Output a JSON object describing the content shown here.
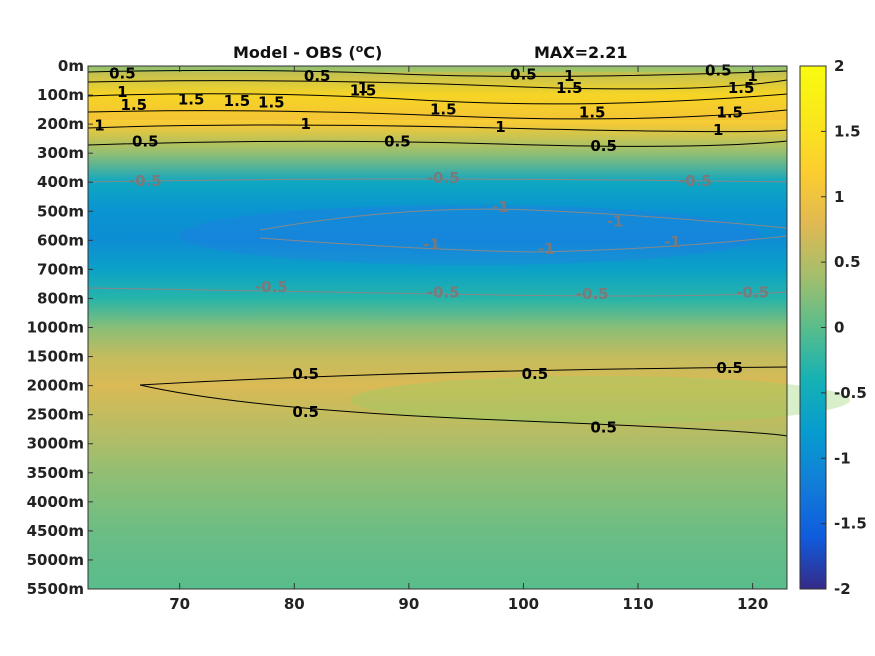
{
  "chart_data": {
    "type": "heatmap",
    "title": "Model - OBS (",
    "title_degree_mark": "o",
    "title_unit_suffix": "C)",
    "annotation": "MAX=2.21",
    "xlim": [
      62,
      123
    ],
    "x_ticks": [
      70,
      80,
      90,
      100,
      110,
      120
    ],
    "x_tick_labels": [
      "70",
      "80",
      "90",
      "100",
      "110",
      "120"
    ],
    "y_levels": [
      "0m",
      "100m",
      "200m",
      "300m",
      "400m",
      "500m",
      "600m",
      "700m",
      "800m",
      "1000m",
      "1500m",
      "2000m",
      "2500m",
      "3000m",
      "3500m",
      "4000m",
      "4500m",
      "5000m",
      "5500m"
    ],
    "colorbar": {
      "range": [
        -2,
        2
      ],
      "ticks": [
        2,
        1.5,
        1,
        0.5,
        0,
        -0.5,
        -1,
        -1.5,
        -2
      ],
      "tick_labels": [
        "2",
        "1.5",
        "1",
        "0.5",
        "0",
        "-0.5",
        "-1",
        "-1.5",
        "-2"
      ]
    },
    "values_by_level": [
      0.3,
      1.6,
      1.1,
      0.3,
      -0.6,
      -0.9,
      -1.0,
      -0.7,
      -0.3,
      0.25,
      0.6,
      0.75,
      0.6,
      0.45,
      0.3,
      0.2,
      0.1,
      0.05,
      0.0
    ],
    "contour_labels": [
      {
        "text": "0.5",
        "x": 65,
        "lev": 0.25,
        "color": "#000000"
      },
      {
        "text": "0.5",
        "x": 82,
        "lev": 0.35,
        "color": "#000000"
      },
      {
        "text": "0.5",
        "x": 100,
        "lev": 0.3,
        "color": "#000000"
      },
      {
        "text": "0.5",
        "x": 117,
        "lev": 0.15,
        "color": "#000000"
      },
      {
        "text": "1",
        "x": 65,
        "lev": 0.9,
        "color": "#000000"
      },
      {
        "text": "1",
        "x": 104,
        "lev": 0.35,
        "color": "#000000"
      },
      {
        "text": "1",
        "x": 120,
        "lev": 0.35,
        "color": "#000000"
      },
      {
        "text": "1",
        "x": 86,
        "lev": 0.75,
        "color": "#000000"
      },
      {
        "text": "1.5",
        "x": 66,
        "lev": 1.35,
        "color": "#000000"
      },
      {
        "text": "1.5",
        "x": 71,
        "lev": 1.15,
        "color": "#000000"
      },
      {
        "text": "1.5",
        "x": 75,
        "lev": 1.2,
        "color": "#000000"
      },
      {
        "text": "1.5",
        "x": 78,
        "lev": 1.25,
        "color": "#000000"
      },
      {
        "text": "1.5",
        "x": 86,
        "lev": 0.85,
        "color": "#000000"
      },
      {
        "text": "1.5",
        "x": 93,
        "lev": 1.5,
        "color": "#000000"
      },
      {
        "text": "1.5",
        "x": 104,
        "lev": 0.75,
        "color": "#000000"
      },
      {
        "text": "1.5",
        "x": 106,
        "lev": 1.6,
        "color": "#000000"
      },
      {
        "text": "1.5",
        "x": 119,
        "lev": 0.75,
        "color": "#000000"
      },
      {
        "text": "1.5",
        "x": 118,
        "lev": 1.6,
        "color": "#000000"
      },
      {
        "text": "1",
        "x": 63,
        "lev": 2.05,
        "color": "#000000"
      },
      {
        "text": "1",
        "x": 81,
        "lev": 2.0,
        "color": "#000000"
      },
      {
        "text": "1",
        "x": 98,
        "lev": 2.1,
        "color": "#000000"
      },
      {
        "text": "1",
        "x": 117,
        "lev": 2.2,
        "color": "#000000"
      },
      {
        "text": "0.5",
        "x": 67,
        "lev": 2.6,
        "color": "#000000"
      },
      {
        "text": "0.5",
        "x": 89,
        "lev": 2.6,
        "color": "#000000"
      },
      {
        "text": "0.5",
        "x": 107,
        "lev": 2.75,
        "color": "#000000"
      },
      {
        "text": "-0.5",
        "x": 67,
        "lev": 3.95,
        "color": "#7a7a7a"
      },
      {
        "text": "-0.5",
        "x": 93,
        "lev": 3.85,
        "color": "#7a7a7a"
      },
      {
        "text": "-0.5",
        "x": 115,
        "lev": 3.95,
        "color": "#7a7a7a"
      },
      {
        "text": "-1",
        "x": 98,
        "lev": 4.85,
        "color": "#7a7a7a"
      },
      {
        "text": "-1",
        "x": 108,
        "lev": 5.35,
        "color": "#7a7a7a"
      },
      {
        "text": "-1",
        "x": 92,
        "lev": 6.15,
        "color": "#7a7a7a"
      },
      {
        "text": "-1",
        "x": 102,
        "lev": 6.3,
        "color": "#7a7a7a"
      },
      {
        "text": "-1",
        "x": 113,
        "lev": 6.05,
        "color": "#7a7a7a"
      },
      {
        "text": "-0.5",
        "x": 78,
        "lev": 7.6,
        "color": "#7a7a7a"
      },
      {
        "text": "-0.5",
        "x": 93,
        "lev": 7.8,
        "color": "#7a7a7a"
      },
      {
        "text": "-0.5",
        "x": 106,
        "lev": 7.85,
        "color": "#7a7a7a"
      },
      {
        "text": "-0.5",
        "x": 120,
        "lev": 7.8,
        "color": "#7a7a7a"
      },
      {
        "text": "0.5",
        "x": 81,
        "lev": 10.6,
        "color": "#000000"
      },
      {
        "text": "0.5",
        "x": 101,
        "lev": 10.6,
        "color": "#000000"
      },
      {
        "text": "0.5",
        "x": 118,
        "lev": 10.4,
        "color": "#000000"
      },
      {
        "text": "0.5",
        "x": 81,
        "lev": 11.9,
        "color": "#000000"
      },
      {
        "text": "0.5",
        "x": 107,
        "lev": 12.45,
        "color": "#000000"
      }
    ]
  }
}
